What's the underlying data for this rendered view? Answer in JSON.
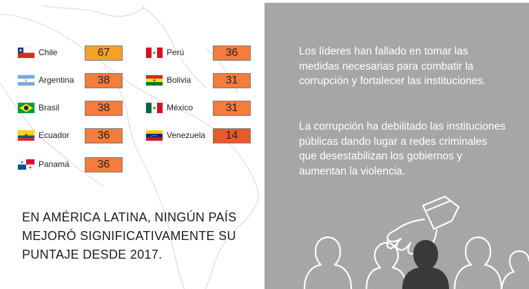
{
  "colors": {
    "high": "#f5a12a",
    "mid": "#f47c3c",
    "low": "#e85a2a",
    "panel": "#a6a6a6"
  },
  "countries": [
    {
      "name": "Chile",
      "score": "67",
      "flag": "chile-flag"
    },
    {
      "name": "Argentina",
      "score": "38",
      "flag": "argentina-flag"
    },
    {
      "name": "Brasil",
      "score": "38",
      "flag": "brazil-flag"
    },
    {
      "name": "Ecuador",
      "score": "36",
      "flag": "ecuador-flag"
    },
    {
      "name": "Panamá",
      "score": "36",
      "flag": "panama-flag"
    },
    {
      "name": "Perú",
      "score": "36",
      "flag": "peru-flag"
    },
    {
      "name": "Bolivia",
      "score": "31",
      "flag": "bolivia-flag"
    },
    {
      "name": "México",
      "score": "31",
      "flag": "mexico-flag"
    },
    {
      "name": "Venezuela",
      "score": "14",
      "flag": "venezuela-flag"
    }
  ],
  "headline": "EN AMÉRICA LATINA, NINGÚN PAÍS MEJORÓ SIGNIFICATIVAMENTE SU PUNTAJE DESDE 2017.",
  "paragraphs": [
    "Los líderes han fallado en tomar las medidas necesarias para combatir la corrupción y fortalecer las instituciones.",
    "La corrupción ha debilitado las instituciones públicas dando lugar a redes criminales que desestabilizan los gobiernos y aumentan la violencia."
  ],
  "icons": {
    "map": "latin-america-map",
    "illustration": "voting-hand-crowd-illustration"
  }
}
